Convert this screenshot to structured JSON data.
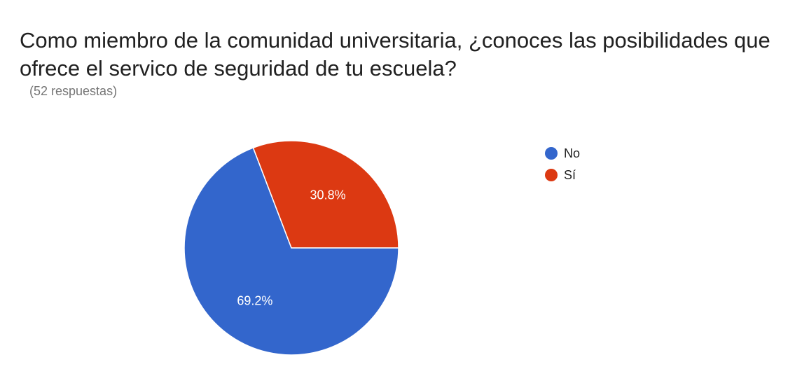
{
  "title": "Como miembro de la comunidad universitaria, ¿conoces las posibilidades que ofrece el servico de seguridad de tu escuela?",
  "subtitle": "(52 respuestas)",
  "chart_data": {
    "type": "pie",
    "title": "Como miembro de la comunidad universitaria, ¿conoces las posibilidades que ofrece el servico de seguridad de tu escuela?",
    "subtitle": "(52 respuestas)",
    "slices": [
      {
        "label": "No",
        "value": 69.2,
        "display": "69.2%",
        "color": "#3366cc"
      },
      {
        "label": "Sí",
        "value": 30.8,
        "display": "30.8%",
        "color": "#dc3912"
      }
    ],
    "legend_position": "right"
  }
}
